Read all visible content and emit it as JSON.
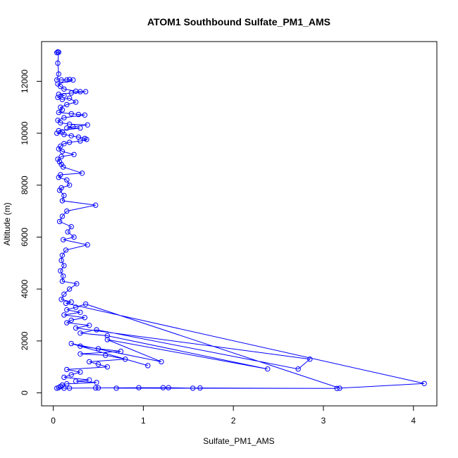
{
  "chart_data": {
    "type": "scatter",
    "title": "ATOM1 Southbound Sulfate_PM1_AMS",
    "xlabel": "Sulfate_PM1_AMS",
    "ylabel": "Altitude (m)",
    "xlim": [
      -0.13,
      4.26
    ],
    "ylim": [
      -500,
      13530
    ],
    "xticks": [
      0,
      1,
      2,
      3,
      4
    ],
    "yticks": [
      0,
      2000,
      4000,
      6000,
      8000,
      10000,
      12000
    ],
    "xtick_labels": [
      "0",
      "1",
      "2",
      "3",
      "4"
    ],
    "ytick_labels": [
      "0",
      "2000",
      "4000",
      "6000",
      "8000",
      "10000",
      "12000"
    ],
    "connected": true,
    "marker": "open-circle",
    "color": "#0000ff",
    "grid": false,
    "legend": "none",
    "series": [
      {
        "points": [
          [
            0.05,
            13130
          ],
          [
            0.04,
            13100
          ],
          [
            0.06,
            13120
          ],
          [
            0.05,
            12700
          ],
          [
            0.06,
            12280
          ],
          [
            0.04,
            12050
          ],
          [
            0.09,
            12050
          ],
          [
            0.15,
            12050
          ],
          [
            0.18,
            12070
          ],
          [
            0.22,
            12050
          ],
          [
            0.05,
            11900
          ],
          [
            0.08,
            11800
          ],
          [
            0.12,
            11700
          ],
          [
            0.25,
            11620
          ],
          [
            0.3,
            11600
          ],
          [
            0.36,
            11600
          ],
          [
            0.2,
            11550
          ],
          [
            0.06,
            11500
          ],
          [
            0.12,
            11450
          ],
          [
            0.05,
            11380
          ],
          [
            0.1,
            11300
          ],
          [
            0.18,
            11350
          ],
          [
            0.25,
            11200
          ],
          [
            0.15,
            11100
          ],
          [
            0.08,
            11000
          ],
          [
            0.1,
            10900
          ],
          [
            0.06,
            10800
          ],
          [
            0.2,
            10750
          ],
          [
            0.28,
            10720
          ],
          [
            0.35,
            10700
          ],
          [
            0.12,
            10600
          ],
          [
            0.05,
            10500
          ],
          [
            0.08,
            10400
          ],
          [
            0.18,
            10350
          ],
          [
            0.38,
            10320
          ],
          [
            0.22,
            10250
          ],
          [
            0.15,
            10200
          ],
          [
            0.3,
            10200
          ],
          [
            0.06,
            10100
          ],
          [
            0.1,
            10050
          ],
          [
            0.04,
            10000
          ],
          [
            0.12,
            9950
          ],
          [
            0.2,
            9900
          ],
          [
            0.28,
            9850
          ],
          [
            0.35,
            9800
          ],
          [
            0.37,
            9760
          ],
          [
            0.3,
            9700
          ],
          [
            0.18,
            9650
          ],
          [
            0.12,
            9600
          ],
          [
            0.08,
            9500
          ],
          [
            0.06,
            9400
          ],
          [
            0.1,
            9300
          ],
          [
            0.23,
            9180
          ],
          [
            0.09,
            9100
          ],
          [
            0.05,
            9000
          ],
          [
            0.07,
            8900
          ],
          [
            0.09,
            8800
          ],
          [
            0.11,
            8700
          ],
          [
            0.32,
            8460
          ],
          [
            0.08,
            8400
          ],
          [
            0.06,
            8300
          ],
          [
            0.15,
            8200
          ],
          [
            0.18,
            8000
          ],
          [
            0.09,
            7900
          ],
          [
            0.07,
            7800
          ],
          [
            0.12,
            7600
          ],
          [
            0.1,
            7400
          ],
          [
            0.47,
            7230
          ],
          [
            0.15,
            7000
          ],
          [
            0.1,
            6800
          ],
          [
            0.07,
            6600
          ],
          [
            0.2,
            6400
          ],
          [
            0.16,
            6200
          ],
          [
            0.23,
            6000
          ],
          [
            0.11,
            5900
          ],
          [
            0.38,
            5700
          ],
          [
            0.14,
            5500
          ],
          [
            0.1,
            5300
          ],
          [
            0.09,
            5100
          ],
          [
            0.12,
            4900
          ],
          [
            0.08,
            4700
          ],
          [
            0.11,
            4500
          ],
          [
            0.1,
            4300
          ],
          [
            0.26,
            4200
          ],
          [
            0.18,
            4000
          ],
          [
            0.12,
            3800
          ],
          [
            0.09,
            3600
          ],
          [
            0.2,
            3500
          ],
          [
            0.14,
            3450
          ],
          [
            4.12,
            360
          ],
          [
            3.18,
            180
          ],
          [
            0.36,
            3420
          ],
          [
            0.25,
            3300
          ],
          [
            0.15,
            3200
          ],
          [
            0.3,
            3100
          ],
          [
            0.12,
            3000
          ],
          [
            0.35,
            2900
          ],
          [
            0.2,
            2800
          ],
          [
            0.15,
            2700
          ],
          [
            0.4,
            2600
          ],
          [
            0.25,
            2500
          ],
          [
            2.85,
            1300
          ],
          [
            2.72,
            920
          ],
          [
            0.48,
            2430
          ],
          [
            0.3,
            2300
          ],
          [
            0.6,
            2200
          ],
          [
            2.38,
            920
          ],
          [
            0.6,
            2050
          ],
          [
            1.2,
            1200
          ],
          [
            0.2,
            1900
          ],
          [
            1.05,
            1050
          ],
          [
            0.3,
            1800
          ],
          [
            0.5,
            1700
          ],
          [
            0.75,
            1600
          ],
          [
            0.3,
            1500
          ],
          [
            0.58,
            1450
          ],
          [
            0.8,
            1300
          ],
          [
            0.4,
            1200
          ],
          [
            0.5,
            1100
          ],
          [
            0.6,
            1000
          ],
          [
            0.15,
            900
          ],
          [
            0.3,
            800
          ],
          [
            0.2,
            700
          ],
          [
            0.12,
            600
          ],
          [
            0.4,
            500
          ],
          [
            0.25,
            450
          ],
          [
            0.48,
            400
          ],
          [
            0.15,
            350
          ],
          [
            0.1,
            300
          ],
          [
            0.08,
            250
          ],
          [
            0.06,
            200
          ],
          [
            0.04,
            180
          ],
          [
            0.12,
            180
          ],
          [
            0.18,
            180
          ],
          [
            0.5,
            190
          ],
          [
            0.47,
            190
          ],
          [
            0.95,
            200
          ],
          [
            1.22,
            200
          ],
          [
            1.28,
            200
          ],
          [
            1.55,
            180
          ],
          [
            1.63,
            190
          ],
          [
            3.15,
            170
          ],
          [
            0.7,
            180
          ]
        ]
      }
    ]
  }
}
